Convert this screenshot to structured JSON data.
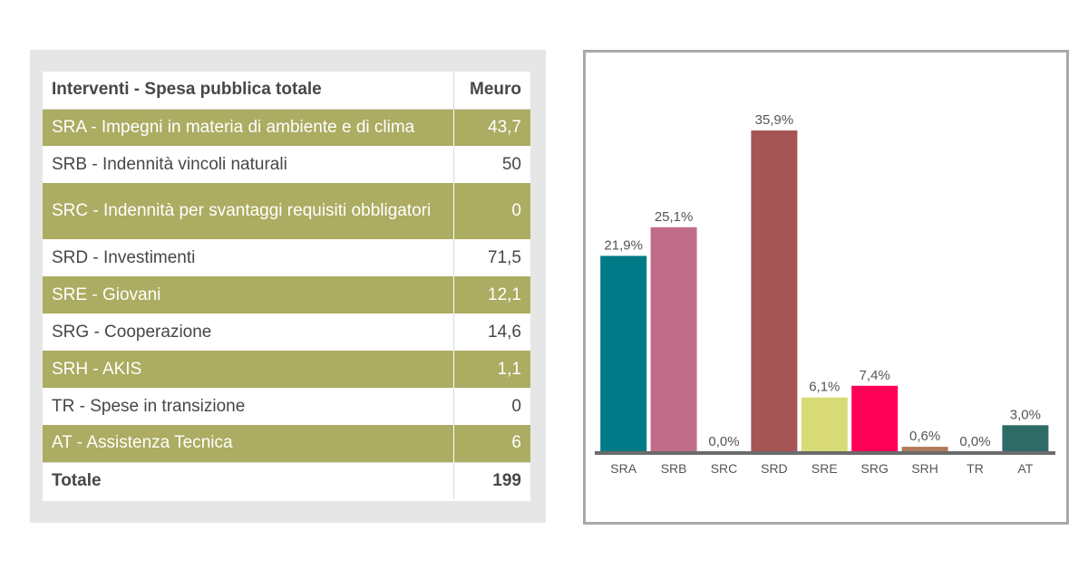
{
  "table": {
    "header": {
      "name": "Interventi - Spesa pubblica totale",
      "value": "Meuro"
    },
    "rows": [
      {
        "name": "SRA - Impegni in materia di ambiente e di clima",
        "value": "43,7",
        "shaded": true
      },
      {
        "name": "SRB - Indennità vincoli naturali",
        "value": "50",
        "shaded": false
      },
      {
        "name": "SRC - Indennità per svantaggi requisiti obbligatori",
        "value": "0",
        "shaded": true
      },
      {
        "name": "SRD - Investimenti",
        "value": "71,5",
        "shaded": false
      },
      {
        "name": "SRE - Giovani",
        "value": "12,1",
        "shaded": true
      },
      {
        "name": "SRG - Cooperazione",
        "value": "14,6",
        "shaded": false
      },
      {
        "name": "SRH - AKIS",
        "value": "1,1",
        "shaded": true
      },
      {
        "name": "TR - Spese in transizione",
        "value": "0",
        "shaded": false
      },
      {
        "name": "AT - Assistenza Tecnica",
        "value": "6",
        "shaded": true
      }
    ],
    "total": {
      "name": "Totale",
      "value": "199"
    },
    "shade_color": "#acac62"
  },
  "chart_data": {
    "type": "bar",
    "categories": [
      "SRA",
      "SRB",
      "SRC",
      "SRD",
      "SRE",
      "SRG",
      "SRH",
      "TR",
      "AT"
    ],
    "values": [
      21.9,
      25.1,
      0.0,
      35.9,
      6.1,
      7.4,
      0.6,
      0.0,
      3.0
    ],
    "labels": [
      "21,9%",
      "25,1%",
      "0,0%",
      "35,9%",
      "6,1%",
      "7,4%",
      "0,6%",
      "0,0%",
      "3,0%"
    ],
    "colors": [
      "#007a87",
      "#c06d8a",
      "#7a5b4a",
      "#a65555",
      "#d8da76",
      "#ff0057",
      "#b07a5a",
      "#888888",
      "#2e6b67"
    ],
    "title": "",
    "xlabel": "",
    "ylabel": "",
    "ylim": [
      0,
      36
    ],
    "grid": false
  }
}
